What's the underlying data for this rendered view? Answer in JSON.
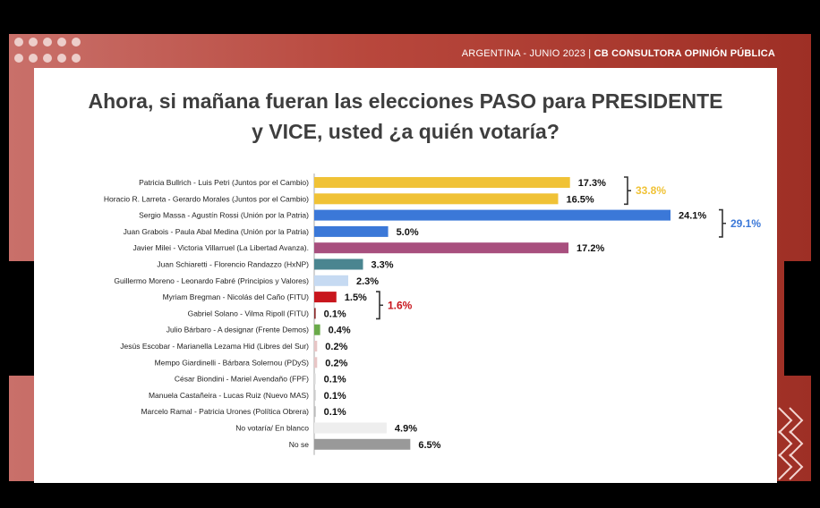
{
  "header": {
    "prefix": "ARGENTINA  - JUNIO 2023 | ",
    "brand": "CB CONSULTORA OPINIÓN PÚBLICA"
  },
  "title_line1": "Ahora, si mañana fueran las elecciones PASO para PRESIDENTE",
  "title_line2": "y VICE, usted ¿a quién votaría?",
  "chart_data": {
    "type": "bar",
    "orientation": "horizontal",
    "title": "Ahora, si mañana fueran las elecciones PASO para PRESIDENTE y VICE, usted ¿a quién votaría?",
    "categories": [
      "Patricia Bullrich - Luis Petri (Juntos por el Cambio)",
      "Horacio R. Larreta - Gerardo Morales (Juntos por el Cambio)",
      "Sergio Massa - Agustín Rossi (Unión por la Patria)",
      "Juan Grabois - Paula Abal Medina (Unión por la Patria)",
      "Javier Milei - Victoria Villarruel (La Libertad Avanza).",
      "Juan Schiaretti - Florencio Randazzo (HxNP)",
      "Guillermo Moreno - Leonardo Fabré (Principios y Valores)",
      "Myriam Bregman - Nicolás del Caño (FITU)",
      "Gabriel Solano - Vilma Ripoll (FITU)",
      "Julio Bárbaro - A designar (Frente Demos)",
      "Jesús Escobar - Marianella Lezama Hid (Libres del Sur)",
      "Mempo Giardinelli - Bárbara Solernou (PDyS)",
      "César Biondini - Mariel Avendaño (FPF)",
      "Manuela Castañeira - Lucas Ruiz (Nuevo MAS)",
      "Marcelo Ramal - Patricia Urones (Política Obrera)",
      "No votaría/ En blanco",
      "No se"
    ],
    "values": [
      17.3,
      16.5,
      24.1,
      5.0,
      17.2,
      3.3,
      2.3,
      1.5,
      0.1,
      0.4,
      0.2,
      0.2,
      0.1,
      0.1,
      0.1,
      4.9,
      6.5
    ],
    "value_labels": [
      "17.3%",
      "16.5%",
      "24.1%",
      "5.0%",
      "17.2%",
      "3.3%",
      "2.3%",
      "1.5%",
      "0.1%",
      "0.4%",
      "0.2%",
      "0.2%",
      "0.1%",
      "0.1%",
      "0.1%",
      "4.9%",
      "6.5%"
    ],
    "colors": [
      "#f0c236",
      "#f0c236",
      "#3b78d8",
      "#3b78d8",
      "#a84f7e",
      "#4a8590",
      "#c6daf2",
      "#c8161d",
      "#8b2a2a",
      "#6aaa4a",
      "#e8c6c6",
      "#e8c6c6",
      "#dddddd",
      "#cccccc",
      "#bbbbbb",
      "#eeeeee",
      "#999999"
    ],
    "groups": [
      {
        "label": "33.8%",
        "from": 0,
        "to": 1,
        "color": "#f0c236"
      },
      {
        "label": "29.1%",
        "from": 2,
        "to": 3,
        "color": "#3b78d8"
      },
      {
        "label": "1.6%",
        "from": 7,
        "to": 8,
        "color": "#c8161d"
      }
    ],
    "xlim": [
      0,
      24.1
    ],
    "grid": false,
    "legend": "none"
  }
}
